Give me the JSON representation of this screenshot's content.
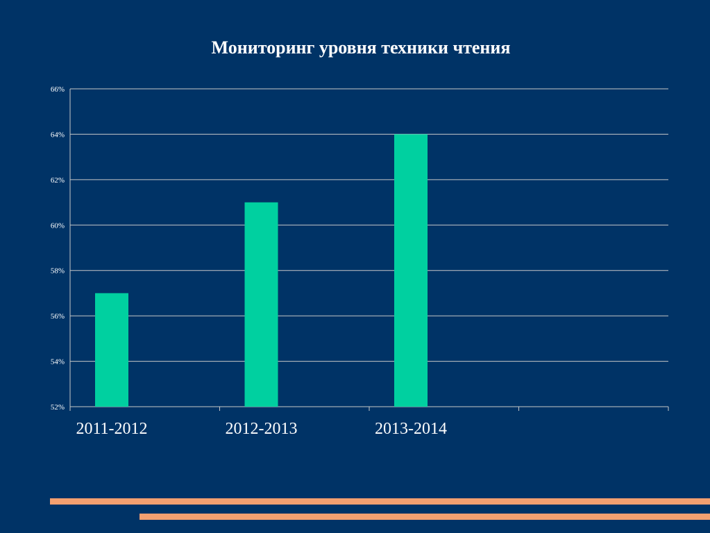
{
  "chart_data": {
    "type": "bar",
    "title": "Мониторинг уровня техники чтения",
    "categories": [
      "2011-2012",
      "2012-2013",
      "2013-2014"
    ],
    "values": [
      57,
      61,
      64
    ],
    "ylim": [
      52,
      66
    ],
    "yticks": [
      52,
      54,
      56,
      58,
      60,
      62,
      64,
      66
    ],
    "ytick_labels": [
      "52%",
      "54%",
      "56%",
      "58%",
      "60%",
      "62%",
      "64%",
      "66%"
    ],
    "grid": true,
    "legend": "none"
  },
  "colors": {
    "background": "#003366",
    "bar": "#00d0a0",
    "grid": "#c8c8c8",
    "text": "#ffffff",
    "accent_line": "#f4a070"
  }
}
